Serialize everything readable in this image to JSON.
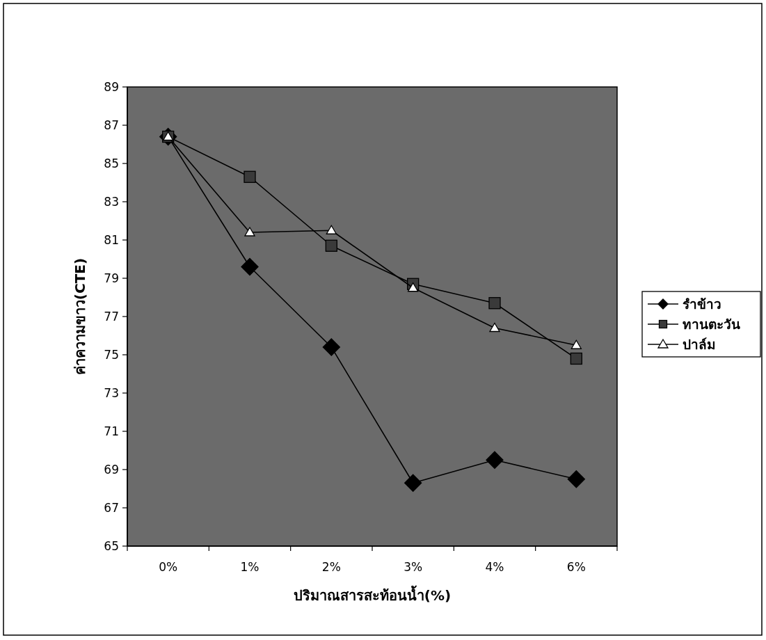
{
  "chart_data": {
    "type": "line",
    "xlabel": "ปริมาณสารสะท้อนน้ำ(%)",
    "ylabel": "ค่าความขาว(CTE)",
    "categories": [
      "0%",
      "1%",
      "2%",
      "3%",
      "4%",
      "6%"
    ],
    "series": [
      {
        "name": "รำข้าว",
        "color": "#000000",
        "marker": "diamond",
        "values": [
          86.4,
          79.6,
          75.4,
          68.3,
          69.5,
          68.5
        ]
      },
      {
        "name": "ทานตะวัน",
        "color": "#3a3a3a",
        "marker": "square",
        "values": [
          86.4,
          84.3,
          80.7,
          78.7,
          77.7,
          74.8
        ]
      },
      {
        "name": "ปาล์ม",
        "color": "#ffffff",
        "marker": "triangle",
        "values": [
          86.4,
          81.4,
          81.5,
          78.5,
          76.4,
          75.5
        ]
      }
    ],
    "ylim": [
      65,
      89
    ],
    "yticks": [
      65,
      67,
      69,
      71,
      73,
      75,
      77,
      79,
      81,
      83,
      85,
      87,
      89
    ],
    "grid": false,
    "legend": "right",
    "line_style": "solid"
  }
}
